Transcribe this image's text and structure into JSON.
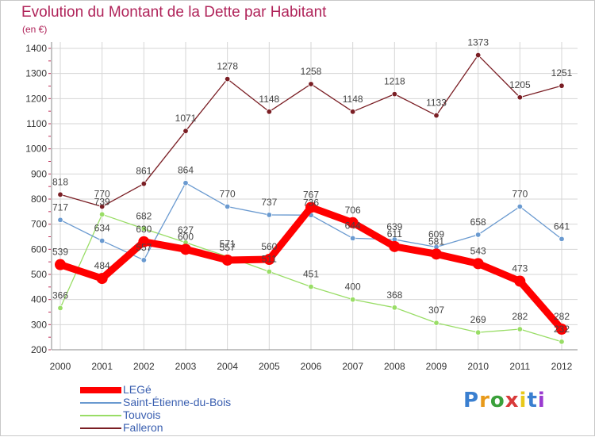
{
  "chart_data": {
    "type": "line",
    "title": "Evolution du Montant de la Dette par Habitant",
    "unit_label": "(en €)",
    "x": [
      "2000",
      "2001",
      "2002",
      "2003",
      "2004",
      "2005",
      "2006",
      "2007",
      "2008",
      "2009",
      "2010",
      "2011",
      "2012"
    ],
    "ylim": [
      200,
      1400
    ],
    "yticks": [
      200,
      300,
      400,
      500,
      600,
      700,
      800,
      900,
      1000,
      1100,
      1200,
      1300,
      1400
    ],
    "grid": true,
    "legend_position": "bottom-left",
    "series": [
      {
        "name": "LEGé",
        "color": "#ff0000",
        "values": [
          539,
          484,
          630,
          600,
          557,
          560,
          767,
          706,
          611,
          581,
          543,
          473,
          282
        ]
      },
      {
        "name": "Saint-Étienne-du-Bois",
        "color": "#6a9ad0",
        "values": [
          717,
          634,
          557,
          864,
          770,
          737,
          736,
          644,
          639,
          609,
          658,
          770,
          641
        ]
      },
      {
        "name": "Touvois",
        "color": "#99dd66",
        "values": [
          366,
          739,
          682,
          627,
          571,
          511,
          451,
          400,
          368,
          307,
          269,
          282,
          232
        ]
      },
      {
        "name": "Falleron",
        "color": "#7a1e24",
        "values": [
          818,
          770,
          861,
          1071,
          1278,
          1148,
          1258,
          1148,
          1218,
          1133,
          1373,
          1205,
          1251
        ]
      }
    ]
  },
  "brand": {
    "logo_letters": [
      "P",
      "r",
      "o",
      "x",
      "i",
      "t",
      "i"
    ],
    "logo_colors": [
      "#3a7fd0",
      "#e89a1a",
      "#3aa03a",
      "#d83a3a",
      "#e8c81a",
      "#3a7fd0",
      "#9a3ad0"
    ]
  }
}
